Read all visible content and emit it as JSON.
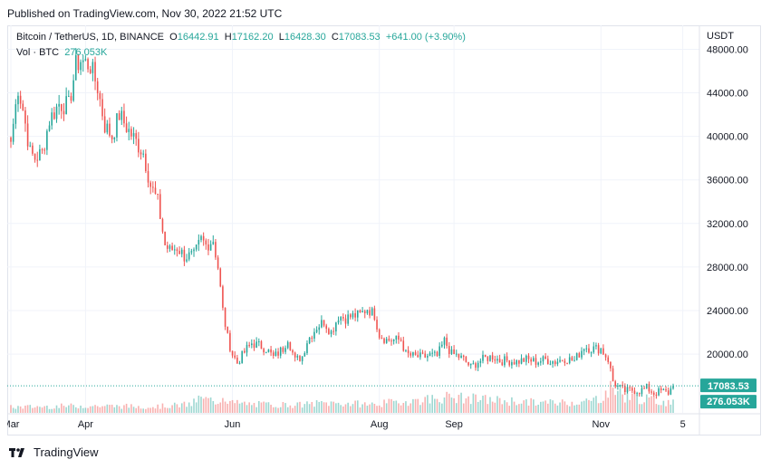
{
  "header": {
    "published": "Published on TradingView.com, Nov 30, 2022 21:52 UTC"
  },
  "legend": {
    "symbol": "Bitcoin / TetherUS, 1D, BINANCE",
    "o_label": "O",
    "o": "16442.91",
    "h_label": "H",
    "h": "17162.20",
    "l_label": "L",
    "l": "16428.30",
    "c_label": "C",
    "c": "17083.53",
    "change": "+641.00 (+3.90%)",
    "vol_label": "Vol · BTC",
    "vol": "276.053K"
  },
  "footer": {
    "brand": "TradingView"
  },
  "colors": {
    "up": "#26a69a",
    "down": "#ef5350",
    "grid": "#f0f3fa",
    "badge_price": "#26a69a"
  },
  "chart_data": {
    "type": "candlestick",
    "currency": "USDT",
    "y_ticks": [
      "48000.00",
      "44000.00",
      "40000.00",
      "36000.00",
      "32000.00",
      "28000.00",
      "24000.00",
      "20000.00"
    ],
    "y_tick_values": [
      48000,
      44000,
      40000,
      36000,
      32000,
      28000,
      24000,
      20000
    ],
    "ylim": [
      14600,
      50200
    ],
    "x_ticks": [
      "Mar",
      "Apr",
      "Jun",
      "Aug",
      "Sep",
      "Nov",
      "5"
    ],
    "x_tick_days": [
      0,
      31,
      92,
      153,
      184,
      245,
      279
    ],
    "x_range_days": [
      0,
      275
    ],
    "last_price": "17083.53",
    "last_price_value": 17083.53,
    "last_volume": "276.053K",
    "vol_max": 100,
    "anchors": [
      [
        0,
        39500
      ],
      [
        3,
        44500
      ],
      [
        5,
        42500
      ],
      [
        8,
        38500
      ],
      [
        10,
        38000
      ],
      [
        13,
        38500
      ],
      [
        16,
        41500
      ],
      [
        20,
        43000
      ],
      [
        24,
        42800
      ],
      [
        27,
        46500
      ],
      [
        29,
        47000
      ],
      [
        33,
        46500
      ],
      [
        36,
        44500
      ],
      [
        39,
        41000
      ],
      [
        42,
        40000
      ],
      [
        45,
        42000
      ],
      [
        49,
        40500
      ],
      [
        52,
        39500
      ],
      [
        55,
        38500
      ],
      [
        58,
        35500
      ],
      [
        61,
        34000
      ],
      [
        64,
        30000
      ],
      [
        66,
        29500
      ],
      [
        69,
        29800
      ],
      [
        72,
        29000
      ],
      [
        76,
        29000
      ],
      [
        79,
        30500
      ],
      [
        81,
        30000
      ],
      [
        84,
        30500
      ],
      [
        86,
        28000
      ],
      [
        88,
        24000
      ],
      [
        90,
        21500
      ],
      [
        92,
        20000
      ],
      [
        94,
        19200
      ],
      [
        98,
        20500
      ],
      [
        100,
        21000
      ],
      [
        103,
        20800
      ],
      [
        106,
        20500
      ],
      [
        109,
        19700
      ],
      [
        113,
        20500
      ],
      [
        115,
        21500
      ],
      [
        118,
        19400
      ],
      [
        121,
        19800
      ],
      [
        123,
        21200
      ],
      [
        127,
        22500
      ],
      [
        130,
        23000
      ],
      [
        133,
        22000
      ],
      [
        136,
        23500
      ],
      [
        139,
        23300
      ],
      [
        142,
        23500
      ],
      [
        145,
        23600
      ],
      [
        148,
        24200
      ],
      [
        151,
        23600
      ],
      [
        153,
        21800
      ],
      [
        156,
        21300
      ],
      [
        159,
        21300
      ],
      [
        162,
        21300
      ],
      [
        164,
        20000
      ],
      [
        167,
        19800
      ],
      [
        171,
        19700
      ],
      [
        174,
        19900
      ],
      [
        177,
        19800
      ],
      [
        180,
        21200
      ],
      [
        183,
        20000
      ],
      [
        185,
        19900
      ],
      [
        188,
        19500
      ],
      [
        191,
        18800
      ],
      [
        194,
        19300
      ],
      [
        197,
        19600
      ],
      [
        200,
        19800
      ],
      [
        203,
        19400
      ],
      [
        206,
        19400
      ],
      [
        210,
        19300
      ],
      [
        214,
        19500
      ],
      [
        218,
        19300
      ],
      [
        222,
        19500
      ],
      [
        226,
        19300
      ],
      [
        230,
        19600
      ],
      [
        234,
        19400
      ],
      [
        238,
        20700
      ],
      [
        241,
        20500
      ],
      [
        245,
        20500
      ],
      [
        248,
        19500
      ],
      [
        250,
        17500
      ],
      [
        252,
        17000
      ],
      [
        255,
        16600
      ],
      [
        258,
        16700
      ],
      [
        261,
        16600
      ],
      [
        264,
        16900
      ],
      [
        267,
        16400
      ],
      [
        270,
        16600
      ],
      [
        273,
        16450
      ],
      [
        275,
        17083
      ]
    ],
    "volume_anchors": [
      [
        0,
        20
      ],
      [
        30,
        25
      ],
      [
        60,
        22
      ],
      [
        75,
        30
      ],
      [
        78,
        50
      ],
      [
        86,
        40
      ],
      [
        88,
        60
      ],
      [
        92,
        35
      ],
      [
        100,
        30
      ],
      [
        120,
        28
      ],
      [
        130,
        35
      ],
      [
        150,
        30
      ],
      [
        170,
        45
      ],
      [
        180,
        55
      ],
      [
        200,
        45
      ],
      [
        220,
        35
      ],
      [
        240,
        40
      ],
      [
        245,
        55
      ],
      [
        250,
        90
      ],
      [
        255,
        60
      ],
      [
        265,
        45
      ],
      [
        275,
        35
      ]
    ]
  }
}
